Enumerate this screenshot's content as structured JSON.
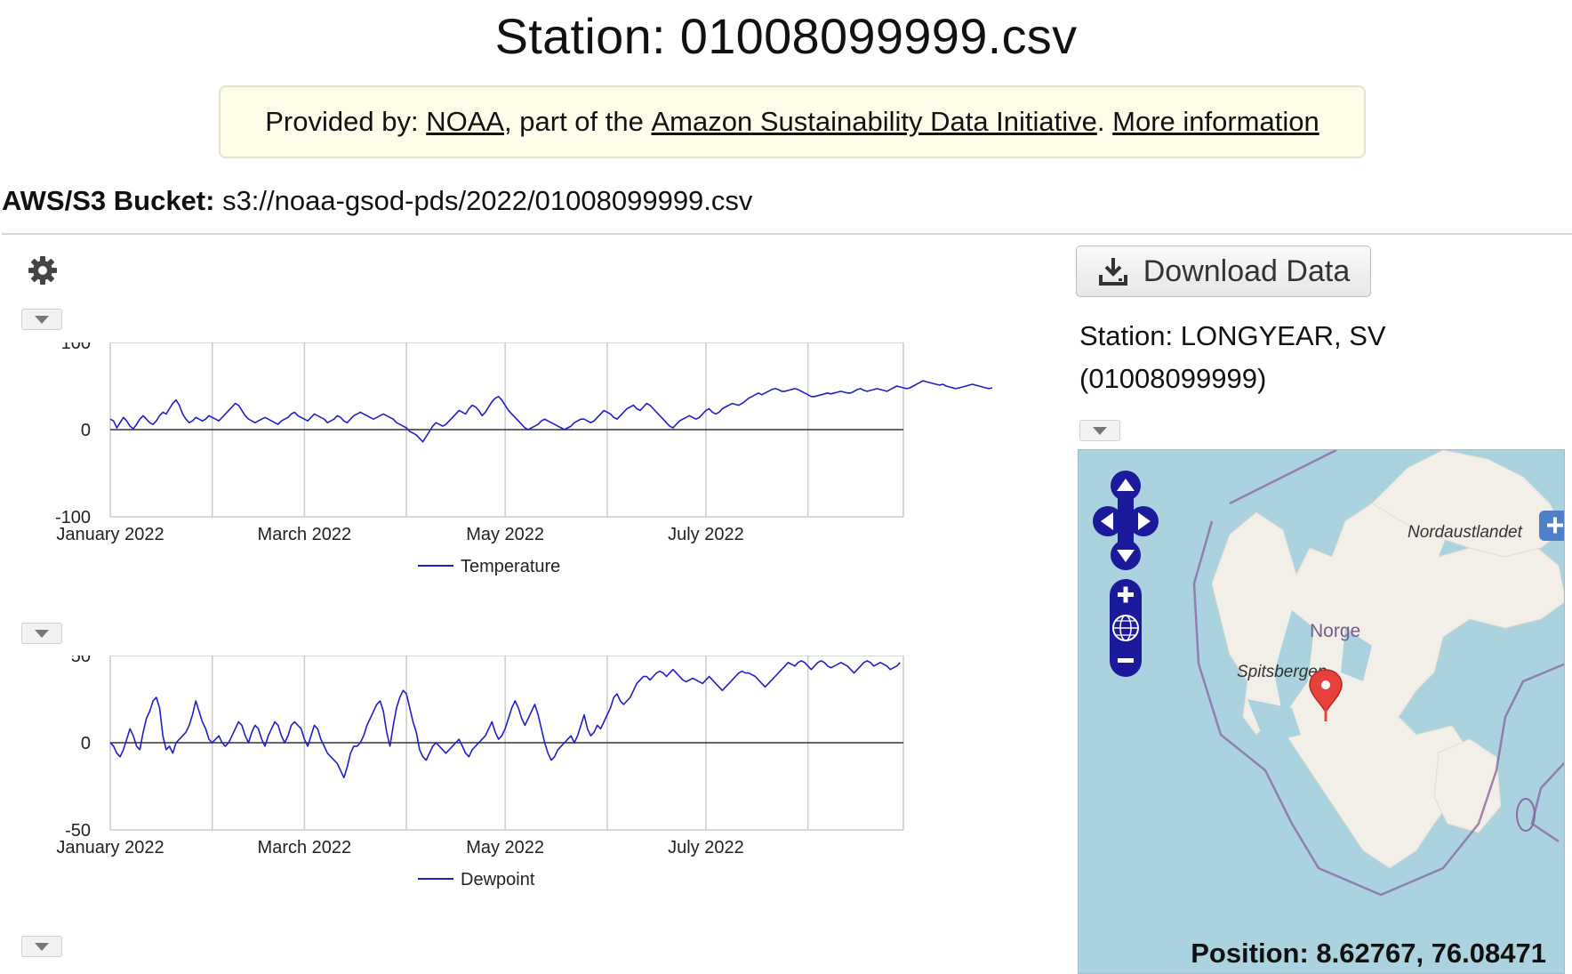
{
  "page": {
    "title": "Station: 01008099999.csv"
  },
  "provider": {
    "prefix": "Provided by: ",
    "link_noaa": "NOAA",
    "middle": ", part of the ",
    "link_initiative": "Amazon Sustainability Data Initiative",
    "dot": ". ",
    "link_more": "More information"
  },
  "bucket": {
    "label": "AWS/S3 Bucket:",
    "value": " s3://noaa-gsod-pds/2022/01008099999.csv"
  },
  "download": {
    "label": "Download Data",
    "icon": "download-icon"
  },
  "station": {
    "line1": "Station: LONGYEAR, SV",
    "line2": "(01008099999)"
  },
  "map": {
    "labels": {
      "island_ne": "Nordaustlandet",
      "country": "Norge",
      "island_main": "Spitsbergen"
    },
    "position_text": "Position: 8.62767, 76.08471",
    "controls": [
      "pan-up-icon",
      "pan-left-icon",
      "pan-right-icon",
      "pan-down-icon",
      "zoom-in-icon",
      "zoom-world-icon",
      "zoom-out-icon",
      "layer-switcher-plus-icon"
    ],
    "colors": {
      "water": "#aad3df",
      "land": "#f2efe9",
      "border": "#8a6aa0",
      "marker": "#e8413b"
    }
  },
  "chart_data": [
    {
      "type": "line",
      "x_ticks": [
        "January 2022",
        "March 2022",
        "May 2022",
        "July 2022"
      ],
      "ylim": [
        -100,
        100
      ],
      "y_ticks": [
        "100",
        "0",
        "-100"
      ],
      "grid": true,
      "legend": "bottom",
      "series": [
        {
          "name": "Temperature",
          "color": "#1f1fc8",
          "x_start": "2022-01-01",
          "values": [
            12,
            10,
            2,
            8,
            14,
            10,
            4,
            1,
            6,
            12,
            16,
            12,
            8,
            6,
            10,
            16,
            20,
            18,
            24,
            30,
            34,
            28,
            18,
            12,
            8,
            10,
            14,
            12,
            10,
            12,
            16,
            14,
            12,
            10,
            14,
            18,
            22,
            26,
            30,
            28,
            22,
            16,
            12,
            10,
            8,
            10,
            12,
            14,
            12,
            10,
            8,
            6,
            10,
            12,
            14,
            18,
            20,
            16,
            14,
            12,
            10,
            14,
            18,
            16,
            14,
            12,
            8,
            10,
            12,
            16,
            14,
            10,
            8,
            12,
            16,
            18,
            20,
            18,
            16,
            14,
            12,
            14,
            16,
            18,
            16,
            14,
            12,
            8,
            6,
            4,
            2,
            -2,
            -4,
            -6,
            -10,
            -14,
            -8,
            -2,
            4,
            8,
            6,
            4,
            6,
            10,
            14,
            18,
            22,
            20,
            18,
            24,
            28,
            26,
            22,
            16,
            20,
            26,
            32,
            36,
            38,
            34,
            28,
            22,
            18,
            14,
            10,
            6,
            2,
            0,
            2,
            4,
            6,
            10,
            12,
            10,
            8,
            6,
            4,
            2,
            0,
            2,
            4,
            8,
            10,
            12,
            12,
            10,
            8,
            10,
            14,
            18,
            22,
            20,
            18,
            14,
            12,
            16,
            20,
            24,
            26,
            28,
            24,
            22,
            26,
            30,
            28,
            24,
            20,
            16,
            12,
            8,
            4,
            2,
            6,
            10,
            12,
            14,
            16,
            14,
            12,
            14,
            18,
            22,
            24,
            20,
            18,
            20,
            24,
            26,
            28,
            30,
            29,
            28,
            30,
            33,
            36,
            38,
            40,
            42,
            40,
            42,
            44,
            46,
            47,
            46,
            44,
            44,
            45,
            46,
            47,
            46,
            44,
            42,
            40,
            38,
            38,
            39,
            40,
            41,
            42,
            41,
            42,
            43,
            44,
            43,
            42,
            42,
            44,
            46,
            47,
            45,
            44,
            45,
            46,
            47,
            46,
            45,
            44,
            46,
            48,
            50,
            49,
            48,
            47,
            48,
            50,
            52,
            54,
            56,
            55,
            54,
            53,
            52,
            51,
            52,
            50,
            49,
            48,
            47,
            48,
            49,
            50,
            51,
            52,
            51,
            50,
            49,
            48,
            47,
            48
          ]
        }
      ]
    },
    {
      "type": "line",
      "x_ticks": [
        "January 2022",
        "March 2022",
        "May 2022",
        "July 2022"
      ],
      "ylim": [
        -50,
        50
      ],
      "y_ticks": [
        "50",
        "0",
        "-50"
      ],
      "grid": true,
      "legend": "bottom",
      "series": [
        {
          "name": "Dewpoint",
          "color": "#1f1fc8",
          "x_start": "2022-01-01",
          "values": [
            0,
            -2,
            -6,
            -8,
            -4,
            2,
            8,
            4,
            -2,
            -4,
            6,
            14,
            18,
            24,
            26,
            20,
            4,
            -4,
            -2,
            -6,
            0,
            2,
            4,
            6,
            10,
            16,
            24,
            18,
            12,
            8,
            2,
            0,
            2,
            4,
            0,
            -2,
            0,
            4,
            8,
            12,
            10,
            4,
            0,
            6,
            10,
            8,
            2,
            -2,
            4,
            8,
            12,
            10,
            4,
            0,
            4,
            10,
            12,
            10,
            8,
            2,
            -2,
            4,
            10,
            8,
            2,
            -2,
            -6,
            -8,
            -10,
            -12,
            -16,
            -20,
            -14,
            -6,
            -2,
            -2,
            0,
            4,
            10,
            14,
            18,
            22,
            24,
            18,
            6,
            -2,
            10,
            20,
            26,
            30,
            28,
            20,
            12,
            6,
            -4,
            -8,
            -10,
            -6,
            -2,
            0,
            -2,
            -4,
            -6,
            -4,
            -2,
            0,
            2,
            -2,
            -6,
            -8,
            -4,
            -2,
            0,
            2,
            4,
            8,
            12,
            6,
            2,
            4,
            8,
            14,
            20,
            24,
            20,
            14,
            10,
            14,
            18,
            22,
            16,
            8,
            0,
            -6,
            -10,
            -8,
            -4,
            -2,
            0,
            2,
            4,
            0,
            4,
            10,
            16,
            8,
            4,
            6,
            10,
            8,
            12,
            16,
            20,
            26,
            28,
            24,
            22,
            24,
            26,
            30,
            34,
            36,
            38,
            38,
            36,
            38,
            40,
            41,
            40,
            38,
            40,
            42,
            40,
            38,
            36,
            35,
            36,
            37,
            36,
            35,
            34,
            36,
            38,
            36,
            34,
            32,
            30,
            32,
            34,
            36,
            38,
            40,
            41,
            40,
            40,
            39,
            38,
            36,
            34,
            32,
            34,
            36,
            38,
            40,
            42,
            44,
            46,
            45,
            44,
            46,
            47,
            46,
            44,
            42,
            44,
            46,
            47,
            46,
            44,
            43,
            44,
            45,
            46,
            45,
            44,
            42,
            40,
            42,
            44,
            46,
            47,
            46,
            44,
            45,
            46,
            45,
            44,
            42,
            43,
            44,
            46
          ]
        }
      ]
    }
  ]
}
